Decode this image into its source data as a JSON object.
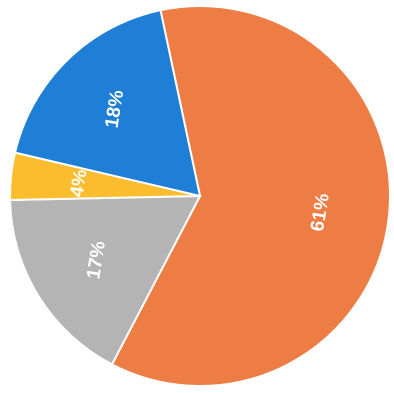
{
  "chart_data": {
    "type": "pie",
    "title": "",
    "slices": [
      {
        "label": "61%",
        "value": 61,
        "color": "#ed7d44"
      },
      {
        "label": "17%",
        "value": 17,
        "color": "#b4b4b4"
      },
      {
        "label": "4%",
        "value": 4,
        "color": "#fbbd2e"
      },
      {
        "label": "18%",
        "value": 18,
        "color": "#1f7ed6"
      }
    ],
    "legend": "none"
  }
}
